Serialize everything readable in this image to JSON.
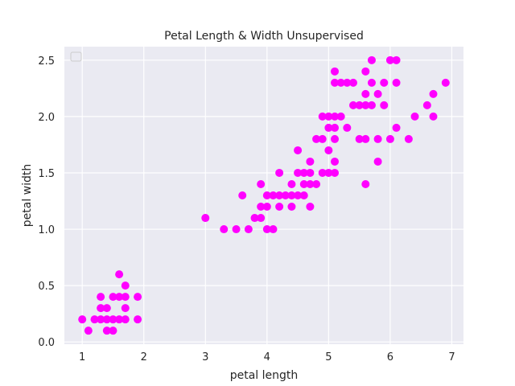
{
  "chart_data": {
    "type": "scatter",
    "title": "Petal Length & Width Unsupervised",
    "xlabel": "petal length",
    "ylabel": "petal width",
    "xlim": [
      0.71,
      7.19
    ],
    "ylim": [
      -0.02,
      2.62
    ],
    "xticks": [
      "1",
      "2",
      "3",
      "4",
      "5",
      "6",
      "7"
    ],
    "yticks": [
      "0.0",
      "0.5",
      "1.0",
      "1.5",
      "2.0",
      "2.5"
    ],
    "grid": true,
    "legend": "top-left",
    "colors": {
      "background": "#eaeaf2",
      "grid": "#ffffff",
      "points": "#ff00ff"
    },
    "series": [
      {
        "points": [
          [
            1.0,
            0.2
          ],
          [
            1.1,
            0.1
          ],
          [
            1.2,
            0.2
          ],
          [
            1.3,
            0.2
          ],
          [
            1.3,
            0.3
          ],
          [
            1.3,
            0.4
          ],
          [
            1.4,
            0.1
          ],
          [
            1.4,
            0.2
          ],
          [
            1.4,
            0.3
          ],
          [
            1.5,
            0.1
          ],
          [
            1.5,
            0.2
          ],
          [
            1.5,
            0.4
          ],
          [
            1.6,
            0.2
          ],
          [
            1.6,
            0.4
          ],
          [
            1.6,
            0.6
          ],
          [
            1.7,
            0.2
          ],
          [
            1.7,
            0.3
          ],
          [
            1.7,
            0.4
          ],
          [
            1.7,
            0.5
          ],
          [
            1.9,
            0.2
          ],
          [
            1.9,
            0.4
          ],
          [
            3.0,
            1.1
          ],
          [
            3.3,
            1.0
          ],
          [
            3.5,
            1.0
          ],
          [
            3.6,
            1.3
          ],
          [
            3.7,
            1.0
          ],
          [
            3.8,
            1.1
          ],
          [
            3.9,
            1.1
          ],
          [
            3.9,
            1.2
          ],
          [
            3.9,
            1.4
          ],
          [
            4.0,
            1.0
          ],
          [
            4.0,
            1.2
          ],
          [
            4.0,
            1.3
          ],
          [
            4.1,
            1.0
          ],
          [
            4.1,
            1.3
          ],
          [
            4.2,
            1.2
          ],
          [
            4.2,
            1.3
          ],
          [
            4.2,
            1.5
          ],
          [
            4.3,
            1.3
          ],
          [
            4.4,
            1.2
          ],
          [
            4.4,
            1.3
          ],
          [
            4.4,
            1.4
          ],
          [
            4.5,
            1.3
          ],
          [
            4.5,
            1.5
          ],
          [
            4.5,
            1.7
          ],
          [
            4.6,
            1.3
          ],
          [
            4.6,
            1.4
          ],
          [
            4.6,
            1.5
          ],
          [
            4.7,
            1.2
          ],
          [
            4.7,
            1.4
          ],
          [
            4.7,
            1.5
          ],
          [
            4.7,
            1.6
          ],
          [
            4.8,
            1.4
          ],
          [
            4.8,
            1.8
          ],
          [
            4.9,
            1.5
          ],
          [
            4.9,
            1.8
          ],
          [
            4.9,
            2.0
          ],
          [
            5.0,
            1.5
          ],
          [
            5.0,
            1.7
          ],
          [
            5.0,
            1.9
          ],
          [
            5.0,
            2.0
          ],
          [
            5.1,
            1.5
          ],
          [
            5.1,
            1.6
          ],
          [
            5.1,
            1.8
          ],
          [
            5.1,
            1.9
          ],
          [
            5.1,
            2.0
          ],
          [
            5.1,
            2.3
          ],
          [
            5.1,
            2.4
          ],
          [
            5.2,
            2.0
          ],
          [
            5.2,
            2.3
          ],
          [
            5.3,
            1.9
          ],
          [
            5.3,
            2.3
          ],
          [
            5.4,
            2.1
          ],
          [
            5.4,
            2.3
          ],
          [
            5.5,
            1.8
          ],
          [
            5.5,
            2.1
          ],
          [
            5.6,
            1.4
          ],
          [
            5.6,
            1.8
          ],
          [
            5.6,
            2.1
          ],
          [
            5.6,
            2.2
          ],
          [
            5.6,
            2.4
          ],
          [
            5.7,
            2.1
          ],
          [
            5.7,
            2.3
          ],
          [
            5.7,
            2.5
          ],
          [
            5.8,
            1.6
          ],
          [
            5.8,
            1.8
          ],
          [
            5.8,
            2.2
          ],
          [
            5.9,
            2.1
          ],
          [
            5.9,
            2.3
          ],
          [
            6.0,
            1.8
          ],
          [
            6.0,
            2.5
          ],
          [
            6.1,
            1.9
          ],
          [
            6.1,
            2.3
          ],
          [
            6.1,
            2.5
          ],
          [
            6.3,
            1.8
          ],
          [
            6.4,
            2.0
          ],
          [
            6.6,
            2.1
          ],
          [
            6.7,
            2.0
          ],
          [
            6.7,
            2.2
          ],
          [
            6.9,
            2.3
          ]
        ]
      }
    ]
  }
}
